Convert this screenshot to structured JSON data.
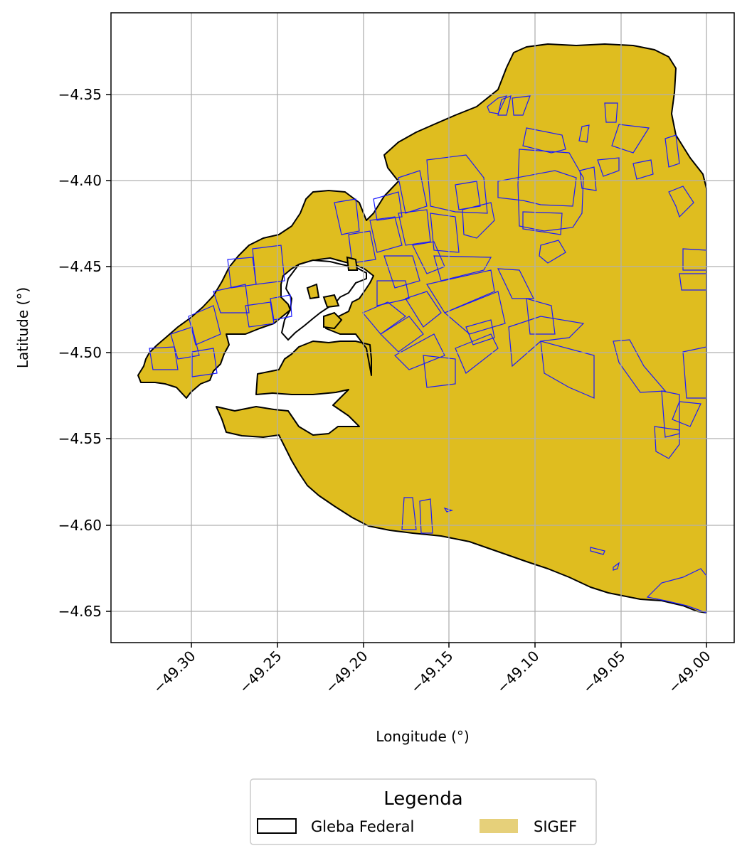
{
  "map": {
    "xlabel": "Longitude (°)",
    "ylabel": "Latitude (°)",
    "x_ticks": [
      "−49.30",
      "−49.25",
      "−49.20",
      "−49.15",
      "−49.10",
      "−49.05",
      "−49.00"
    ],
    "y_ticks": [
      "−4.35",
      "−4.40",
      "−4.45",
      "−4.50",
      "−4.55",
      "−4.60",
      "−4.65"
    ],
    "xlim": [
      -49.337,
      -48.983
    ],
    "ylim": [
      -4.669,
      -4.302
    ],
    "grid": true,
    "legend": {
      "title": "Legenda",
      "placement": "bottom-center",
      "items": [
        {
          "label": "Gleba Federal",
          "style": "outline",
          "color": "#000000"
        },
        {
          "label": "SIGEF",
          "style": "fill",
          "color": "#e6d07a"
        }
      ]
    },
    "colors": {
      "sigef_fill": "#dfbd1f",
      "sigef_border": "#0000ff",
      "gleba_outline": "#000000",
      "grid": "#b0b0b0"
    }
  }
}
